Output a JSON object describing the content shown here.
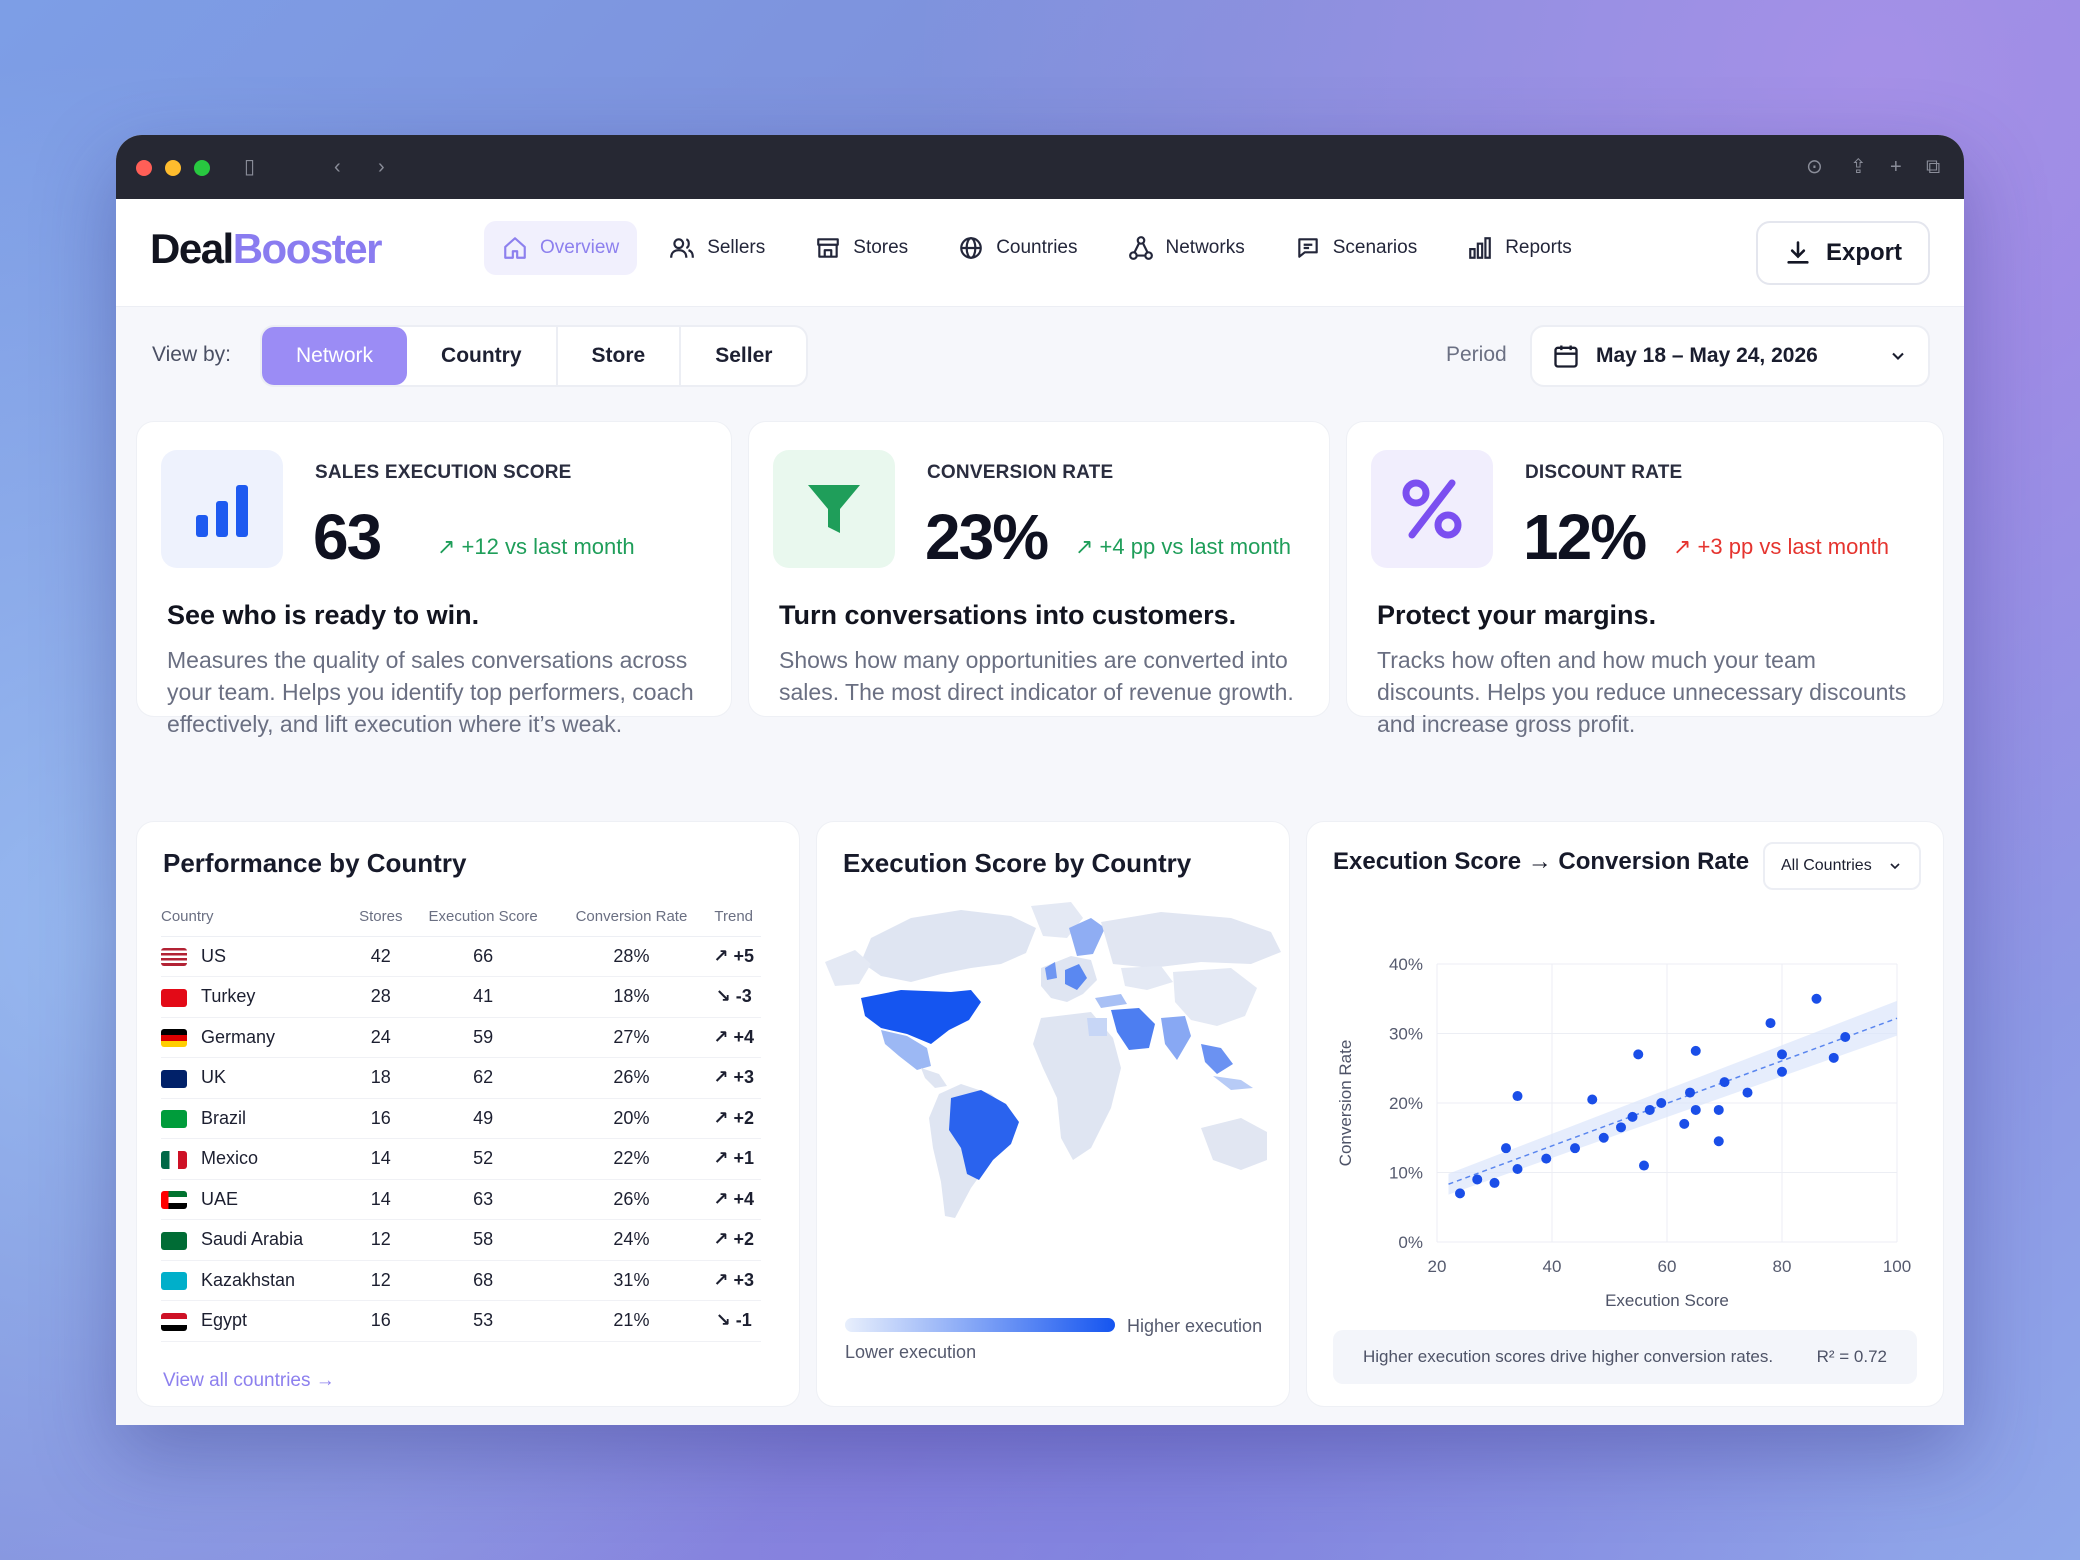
{
  "brand": {
    "part1": "Deal",
    "part2": "Booster"
  },
  "nav": {
    "items": [
      {
        "label": "Overview",
        "icon": "home-icon",
        "active": true
      },
      {
        "label": "Sellers",
        "icon": "users-icon"
      },
      {
        "label": "Stores",
        "icon": "store-icon"
      },
      {
        "label": "Countries",
        "icon": "globe-icon"
      },
      {
        "label": "Networks",
        "icon": "network-icon"
      },
      {
        "label": "Scenarios",
        "icon": "message-icon"
      },
      {
        "label": "Reports",
        "icon": "bar-chart-icon"
      }
    ],
    "export_label": "Export"
  },
  "toolbar": {
    "view_by_label": "View by:",
    "views": [
      "Network",
      "Country",
      "Store",
      "Seller"
    ],
    "active_view": "Network",
    "period_label": "Period",
    "period_value": "May 18 – May 24, 2026"
  },
  "kpis": [
    {
      "title": "SALES EXECUTION SCORE",
      "value": "63",
      "delta": "+12 vs last month",
      "delta_dir": "up",
      "headline": "See who is ready to win.",
      "description": "Measures the quality of sales conversations across your team. Helps you identify top performers, coach effectively, and lift execution where it’s weak.",
      "icon": "bar-chart-icon"
    },
    {
      "title": "CONVERSION RATE",
      "value": "23%",
      "delta": "+4 pp vs last month",
      "delta_dir": "up",
      "headline": "Turn conversations into customers.",
      "description": "Shows how many opportunities are converted into sales. The most direct indicator of revenue growth.",
      "icon": "funnel-icon"
    },
    {
      "title": "DISCOUNT RATE",
      "value": "12%",
      "delta": "+3 pp vs last month",
      "delta_dir": "down",
      "headline": "Protect your margins.",
      "description": "Tracks how often and how much your team discounts. Helps you reduce unnecessary discounts and increase gross profit.",
      "icon": "percent-icon"
    }
  ],
  "performance": {
    "title": "Performance by Country",
    "columns": [
      "Country",
      "Stores",
      "Execution Score",
      "Conversion Rate",
      "Trend"
    ],
    "rows": [
      {
        "country": "US",
        "stores": "42",
        "score": "66",
        "conv": "28%",
        "trend": "+5",
        "dir": "up"
      },
      {
        "country": "Turkey",
        "stores": "28",
        "score": "41",
        "conv": "18%",
        "trend": "-3",
        "dir": "down"
      },
      {
        "country": "Germany",
        "stores": "24",
        "score": "59",
        "conv": "27%",
        "trend": "+4",
        "dir": "up"
      },
      {
        "country": "UK",
        "stores": "18",
        "score": "62",
        "conv": "26%",
        "trend": "+3",
        "dir": "up"
      },
      {
        "country": "Brazil",
        "stores": "16",
        "score": "49",
        "conv": "20%",
        "trend": "+2",
        "dir": "up"
      },
      {
        "country": "Mexico",
        "stores": "14",
        "score": "52",
        "conv": "22%",
        "trend": "+1",
        "dir": "up"
      },
      {
        "country": "UAE",
        "stores": "14",
        "score": "63",
        "conv": "26%",
        "trend": "+4",
        "dir": "up"
      },
      {
        "country": "Saudi Arabia",
        "stores": "12",
        "score": "58",
        "conv": "24%",
        "trend": "+2",
        "dir": "up"
      },
      {
        "country": "Kazakhstan",
        "stores": "12",
        "score": "68",
        "conv": "31%",
        "trend": "+3",
        "dir": "up"
      },
      {
        "country": "Egypt",
        "stores": "16",
        "score": "53",
        "conv": "21%",
        "trend": "-1",
        "dir": "down"
      }
    ],
    "view_all": "View all countries"
  },
  "map": {
    "title": "Execution Score by Country",
    "legend_high": "Higher execution",
    "legend_low": "Lower execution"
  },
  "scatter": {
    "title": "Execution Score → Conversion Rate",
    "filter": "All Countries",
    "note": "Higher execution scores drive higher conversion rates.",
    "r2": "R² = 0.72"
  },
  "chart_data": {
    "type": "scatter",
    "title": "Execution Score → Conversion Rate",
    "xlabel": "Execution Score",
    "ylabel": "Conversion Rate",
    "xlim": [
      20,
      100
    ],
    "ylim": [
      0,
      40
    ],
    "xticks": [
      "20",
      "40",
      "60",
      "80",
      "100"
    ],
    "yticks": [
      "0%",
      "10%",
      "20%",
      "30%",
      "40%"
    ],
    "grid": true,
    "trendline": true,
    "points": [
      [
        24,
        7
      ],
      [
        27,
        9
      ],
      [
        30,
        8.5
      ],
      [
        32,
        13.5
      ],
      [
        34,
        10.5
      ],
      [
        34,
        21
      ],
      [
        39,
        12
      ],
      [
        44,
        13.5
      ],
      [
        47,
        20.5
      ],
      [
        49,
        15
      ],
      [
        52,
        16.5
      ],
      [
        54,
        18
      ],
      [
        55,
        27
      ],
      [
        56,
        11
      ],
      [
        57,
        19
      ],
      [
        59,
        20
      ],
      [
        63,
        17
      ],
      [
        64,
        21.5
      ],
      [
        65,
        19
      ],
      [
        65,
        27.5
      ],
      [
        69,
        14.5
      ],
      [
        69,
        19
      ],
      [
        70,
        23
      ],
      [
        74,
        21.5
      ],
      [
        78,
        31.5
      ],
      [
        80,
        24.5
      ],
      [
        80,
        27
      ],
      [
        86,
        35
      ],
      [
        89,
        26.5
      ],
      [
        91,
        29.5
      ]
    ],
    "r2": 0.72,
    "colors": {
      "points": "#1a4ee8",
      "band": "#dbe5fb"
    }
  },
  "colors": {
    "accent": "#8d80ee",
    "positive": "#1f9e5a",
    "negative": "#e5342f",
    "map_high": "#1555f0"
  }
}
